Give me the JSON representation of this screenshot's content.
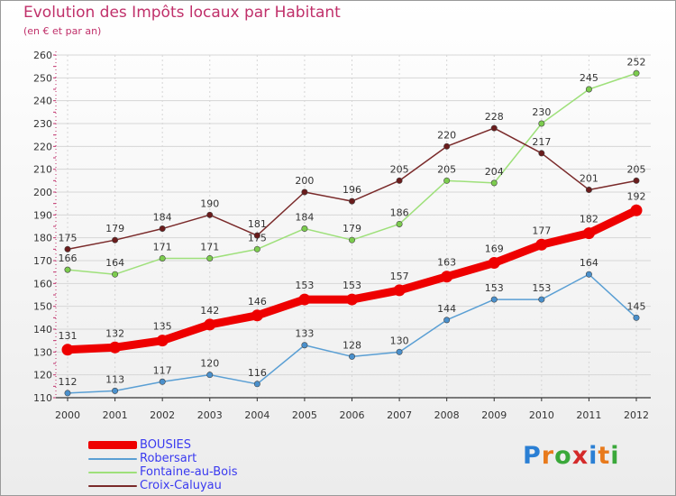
{
  "header": {
    "title": "Evolution des Impôts locaux par Habitant",
    "subtitle": "(en € et par an)"
  },
  "logo": {
    "letters": [
      "P",
      "r",
      "o",
      "x",
      "i",
      "t",
      "i"
    ],
    "colors": [
      "#2a7fd4",
      "#e87a1c",
      "#3aa83a",
      "#d42a2a",
      "#2a7fd4",
      "#e87a1c",
      "#3aa83a"
    ]
  },
  "chart_data": {
    "type": "line",
    "x": [
      "2000",
      "2001",
      "2002",
      "2003",
      "2004",
      "2005",
      "2006",
      "2007",
      "2008",
      "2009",
      "2010",
      "2011",
      "2012"
    ],
    "ylim": [
      110,
      260
    ],
    "yticks": [
      110,
      120,
      130,
      140,
      150,
      160,
      170,
      180,
      190,
      200,
      210,
      220,
      230,
      240,
      250,
      260
    ],
    "grid": true,
    "legend_position": "bottom-left",
    "series": [
      {
        "name": "BOUSIES",
        "color": "#ee0000",
        "emphasis": "thick",
        "values": [
          131,
          132,
          135,
          142,
          146,
          153,
          153,
          157,
          163,
          169,
          177,
          182,
          192
        ]
      },
      {
        "name": "Robersart",
        "color": "#5a9fd4",
        "marker_color": "#4a90cc",
        "values": [
          112,
          113,
          117,
          120,
          116,
          133,
          128,
          130,
          144,
          153,
          153,
          164,
          145
        ]
      },
      {
        "name": "Fontaine-au-Bois",
        "color": "#9ee07a",
        "marker_color": "#7ccc4e",
        "values": [
          166,
          164,
          171,
          171,
          175,
          184,
          179,
          186,
          205,
          204,
          230,
          245,
          252
        ]
      },
      {
        "name": "Croix-Caluyau",
        "color": "#7a2a2a",
        "marker_color": "#6a1c1c",
        "values": [
          175,
          179,
          184,
          190,
          181,
          200,
          196,
          205,
          220,
          228,
          217,
          201,
          205
        ]
      }
    ]
  }
}
